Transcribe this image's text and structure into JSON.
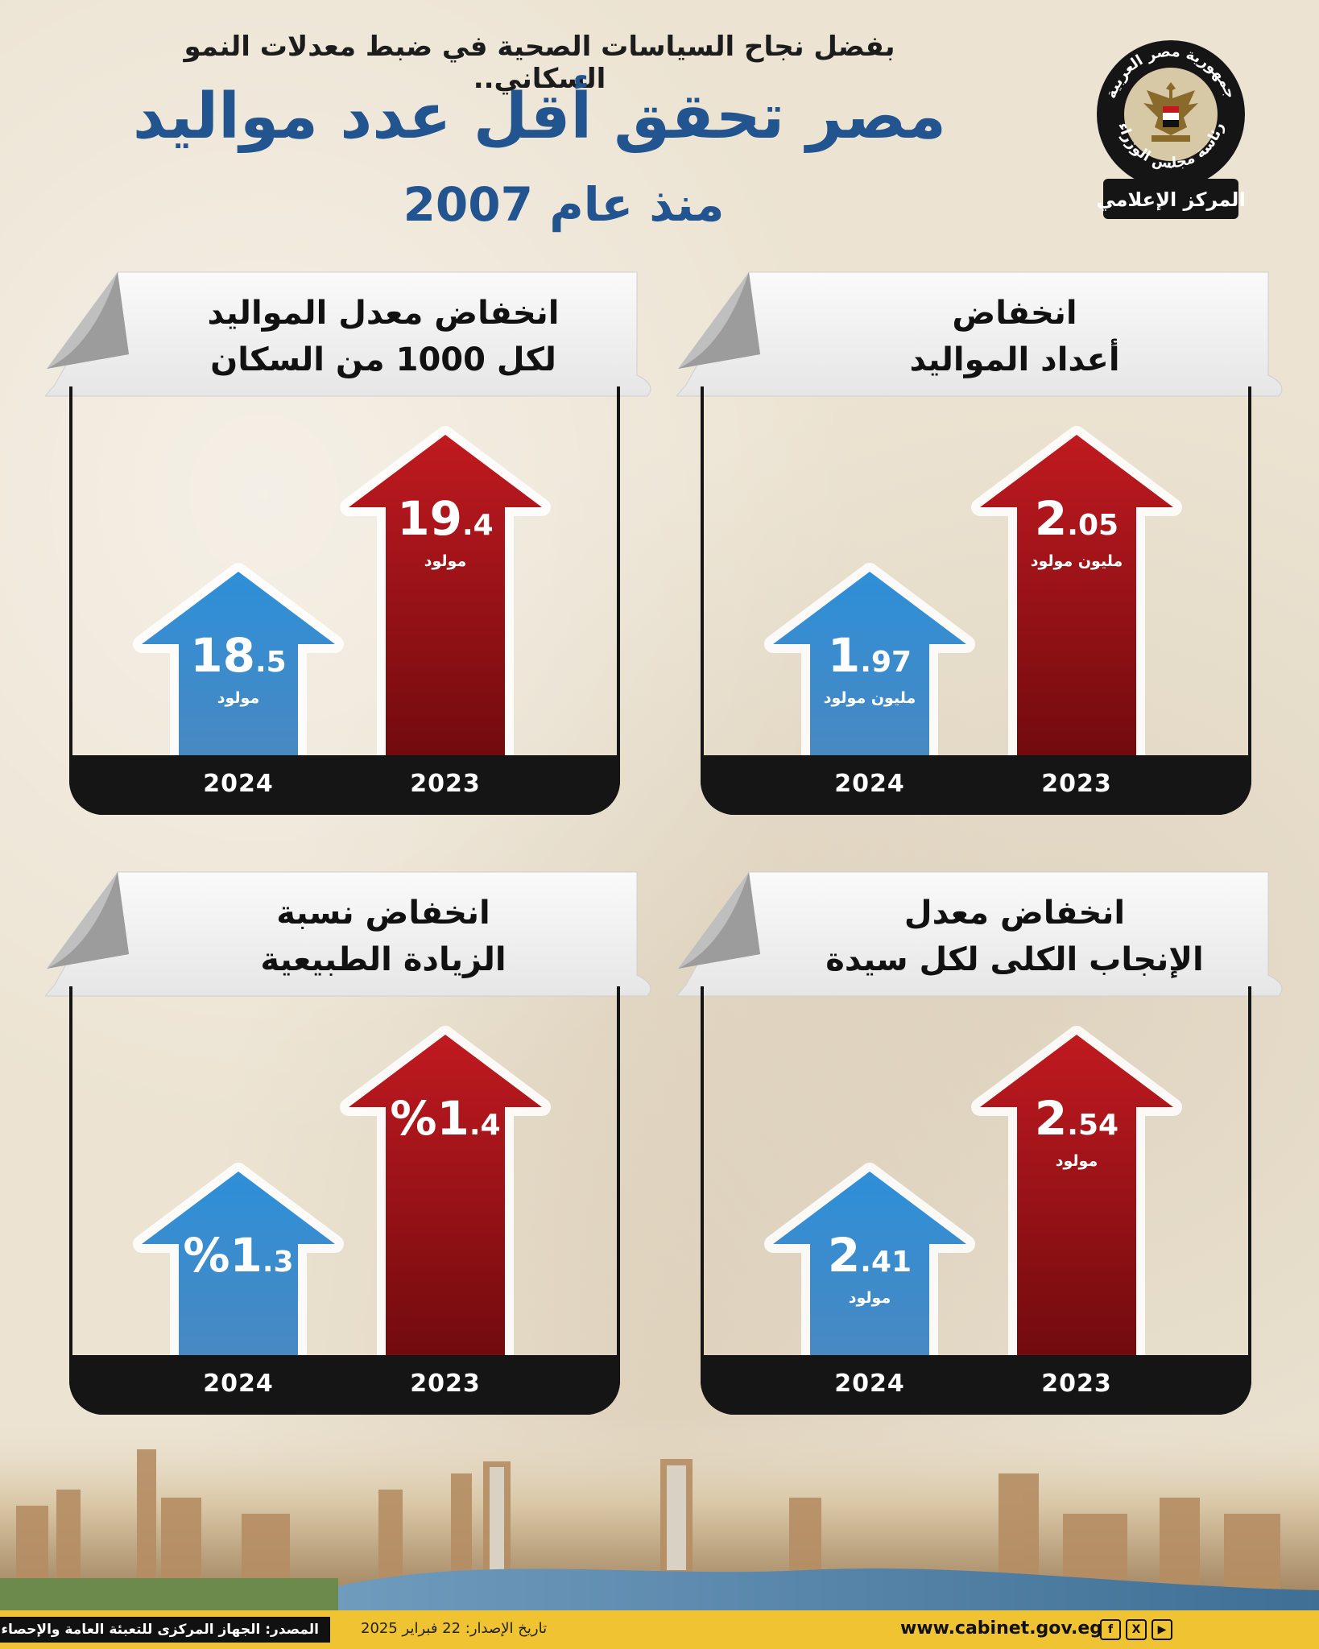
{
  "header": {
    "subtitle": "بفضل نجاح السياسات الصحية في ضبط معدلات النمو السكاني..",
    "title": "مصر تحقق أقل عدد مواليد",
    "title2": "منذ عام 2007"
  },
  "logo": {
    "top_text": "جمهورية مصر العربية",
    "bottom_text": "رئاسة مجلس الوزراء",
    "banner_text": "المركز الإعلامي"
  },
  "colors": {
    "accent_blue": "#22548f",
    "bar_2023": "#8c0e12",
    "bar_2024": "#2c7fc4",
    "footer": "#f0c332"
  },
  "chart_data": [
    {
      "type": "bar",
      "title_line1": "انخفاض",
      "title_line2": "أعداد المواليد",
      "categories": [
        "2024",
        "2023"
      ],
      "values": [
        1.97,
        2.05
      ],
      "labels": [
        {
          "int": "1",
          "dec": ".97"
        },
        {
          "int": "2",
          "dec": ".05"
        }
      ],
      "unit": "مليون مولود"
    },
    {
      "type": "bar",
      "title_line1": "انخفاض معدل المواليد",
      "title_line2": "لكل 1000 من السكان",
      "categories": [
        "2024",
        "2023"
      ],
      "values": [
        18.5,
        19.4
      ],
      "labels": [
        {
          "int": "18",
          "dec": ".5"
        },
        {
          "int": "19",
          "dec": ".4"
        }
      ],
      "unit": "مولود"
    },
    {
      "type": "bar",
      "title_line1": "انخفاض معدل",
      "title_line2": "الإنجاب الكلى لكل سيدة",
      "categories": [
        "2024",
        "2023"
      ],
      "values": [
        2.41,
        2.54
      ],
      "labels": [
        {
          "int": "2",
          "dec": ".41"
        },
        {
          "int": "2",
          "dec": ".54"
        }
      ],
      "unit": "مولود"
    },
    {
      "type": "bar",
      "title_line1": "انخفاض نسبة",
      "title_line2": "الزيادة الطبيعية",
      "categories": [
        "2024",
        "2023"
      ],
      "values": [
        1.3,
        1.4
      ],
      "labels": [
        {
          "int": "%1",
          "dec": ".3"
        },
        {
          "int": "%1",
          "dec": ".4"
        }
      ],
      "unit": ""
    }
  ],
  "footer": {
    "source": "المصدر: الجهاز المركزى للتعبئة العامة والإحصاء",
    "date": "تاريخ الإصدار: 22 فبراير 2025",
    "site": "www.cabinet.gov.eg",
    "social_icons": [
      "facebook-icon",
      "x-icon",
      "youtube-icon"
    ]
  }
}
